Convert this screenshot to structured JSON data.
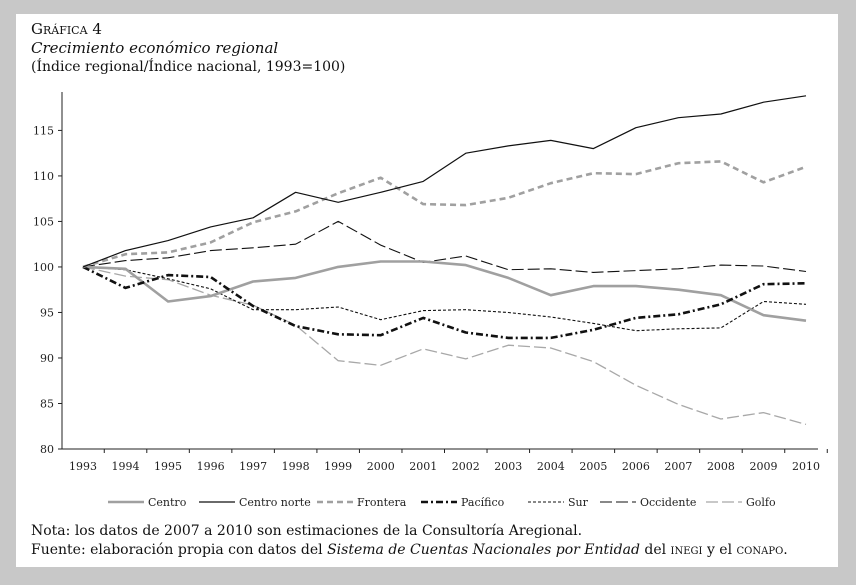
{
  "header": {
    "label": "Gráfica 4",
    "title": "Crecimiento económico regional",
    "subtitle": "(Índice regional/Índice nacional, 1993=100)"
  },
  "footer": {
    "nota": "Nota: los datos de 2007 a 2010 son estimaciones de la Consultoría Aregional.",
    "fuente_pre": "Fuente: elaboración propia con datos del ",
    "fuente_italic": "Sistema de Cuentas Nacionales por Entidad",
    "fuente_mid": " del ",
    "fuente_inegi": "inegi",
    "fuente_and": " y el ",
    "fuente_conapo": "conapo",
    "fuente_end": "."
  },
  "chart_data": {
    "type": "line",
    "title": "Crecimiento económico regional",
    "xlabel": "",
    "ylabel": "",
    "ylim": [
      80,
      119
    ],
    "yticks": [
      80,
      85,
      90,
      95,
      100,
      105,
      110,
      115
    ],
    "legend_position": "bottom",
    "categories": [
      "1993",
      "1994",
      "1995",
      "1996",
      "1997",
      "1998",
      "1999",
      "2000",
      "2001",
      "2002",
      "2003",
      "2004",
      "2005",
      "2006",
      "2007",
      "2008",
      "2009",
      "2010"
    ],
    "series": [
      {
        "name": "Centro",
        "color": "#a0a0a0",
        "style": "solid-thick",
        "values": [
          100,
          99.8,
          96.2,
          96.8,
          98.4,
          98.8,
          100.0,
          100.6,
          100.6,
          100.2,
          98.8,
          96.9,
          97.9,
          97.9,
          97.5,
          96.9,
          94.7,
          94.1
        ]
      },
      {
        "name": "Centro norte",
        "color": "#111111",
        "style": "solid-thin",
        "values": [
          100,
          101.8,
          102.9,
          104.4,
          105.4,
          108.2,
          107.1,
          108.2,
          109.4,
          112.5,
          113.3,
          113.9,
          113.0,
          115.3,
          116.4,
          116.8,
          118.1,
          118.8
        ]
      },
      {
        "name": "Frontera",
        "color": "#a0a0a0",
        "style": "dash-thick",
        "values": [
          100,
          101.4,
          101.6,
          102.7,
          104.9,
          106.1,
          108.1,
          109.8,
          106.9,
          106.8,
          107.6,
          109.2,
          110.3,
          110.2,
          111.4,
          111.6,
          109.3,
          111.0
        ]
      },
      {
        "name": "Pacífico",
        "color": "#111111",
        "style": "dashdot-thick",
        "values": [
          100,
          97.7,
          99.1,
          98.9,
          95.7,
          93.5,
          92.6,
          92.5,
          94.4,
          92.8,
          92.2,
          92.2,
          93.1,
          94.4,
          94.8,
          95.9,
          98.1,
          98.2
        ]
      },
      {
        "name": "Sur",
        "color": "#111111",
        "style": "dot-thin",
        "values": [
          100,
          99.7,
          98.7,
          97.6,
          95.3,
          95.3,
          95.6,
          94.2,
          95.2,
          95.3,
          95.0,
          94.5,
          93.8,
          93.0,
          93.2,
          93.3,
          96.2,
          95.9
        ]
      },
      {
        "name": "Occidente",
        "color": "#111111",
        "style": "longdash-thin",
        "values": [
          100,
          100.7,
          101.0,
          101.8,
          102.1,
          102.5,
          105.0,
          102.4,
          100.5,
          101.2,
          99.7,
          99.8,
          99.4,
          99.6,
          99.8,
          100.2,
          100.1,
          99.5
        ]
      },
      {
        "name": "Golfo",
        "color": "#a8a8a8",
        "style": "longdash-gray",
        "values": [
          100,
          99.0,
          98.6,
          96.9,
          95.8,
          93.6,
          89.7,
          89.2,
          91.0,
          89.9,
          91.4,
          91.1,
          89.6,
          87.0,
          84.9,
          83.3,
          84.0,
          82.7
        ]
      }
    ]
  }
}
